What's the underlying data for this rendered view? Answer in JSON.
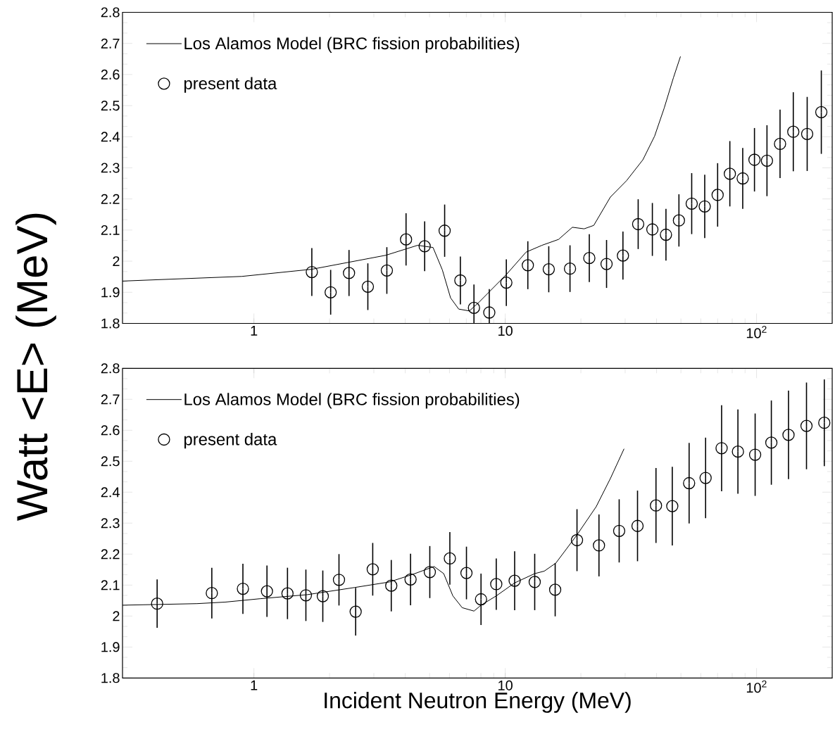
{
  "chart_data": [
    {
      "type": "scatter",
      "ylabel": "Watt <E> (MeV)",
      "log": "x",
      "legend": "top left",
      "xlim": [
        0.3,
        200
      ],
      "ylim": [
        1.8,
        2.8
      ],
      "xticks": [
        1,
        10,
        {
          "value": 100,
          "label": "10$^{2}$"
        }
      ],
      "yticks": [
        1.8,
        1.9,
        2,
        2.1,
        2.2,
        2.3,
        2.4,
        2.5,
        2.6,
        2.7,
        2.8
      ],
      "series": [
        {
          "type": "line",
          "name": "Los Alamos Model (BRC fission probabilities)",
          "color": "#000000",
          "marker": "none",
          "line_style": "solid",
          "x": [
            0.3,
            0.894,
            1.7,
            3.35,
            4.48,
            5.16,
            5.62,
            6.06,
            6.53,
            7.2,
            7.84,
            10.1,
            12.1,
            14.0,
            16.3,
            18.5,
            20.6,
            22.5,
            26.2,
            30.4,
            35.3,
            39.3,
            42.9,
            46.7,
            49.8
          ],
          "values": [
            1.936,
            1.951,
            1.974,
            2.019,
            2.051,
            2.044,
            1.972,
            1.882,
            1.846,
            1.84,
            1.867,
            1.957,
            2.029,
            2.051,
            2.07,
            2.109,
            2.104,
            2.115,
            2.206,
            2.259,
            2.326,
            2.402,
            2.492,
            2.59,
            2.658
          ]
        },
        {
          "name": "present data",
          "color": "#000000",
          "marker": "circle",
          "x": [
            1.7,
            2.02,
            2.39,
            2.84,
            3.38,
            4.03,
            4.78,
            5.74,
            6.63,
            7.51,
            8.64,
            10.1,
            12.3,
            14.9,
            18.1,
            21.6,
            25.3,
            29.4,
            33.8,
            38.5,
            43.6,
            49.1,
            55.2,
            62.2,
            70.0,
            78.3,
            88.1,
            98.1,
            110,
            124,
            140,
            159,
            181
          ],
          "values": [
            1.965,
            1.9,
            1.962,
            1.918,
            1.97,
            2.07,
            2.048,
            2.098,
            1.938,
            1.85,
            1.835,
            1.931,
            1.987,
            1.974,
            1.976,
            2.01,
            1.991,
            2.018,
            2.119,
            2.102,
            2.085,
            2.131,
            2.185,
            2.176,
            2.213,
            2.281,
            2.266,
            2.326,
            2.323,
            2.377,
            2.416,
            2.409,
            2.479
          ],
          "errors": [
            0.077,
            0.072,
            0.074,
            0.075,
            0.075,
            0.084,
            0.08,
            0.084,
            0.077,
            0.075,
            0.075,
            0.075,
            0.077,
            0.074,
            0.075,
            0.077,
            0.077,
            0.077,
            0.08,
            0.085,
            0.083,
            0.084,
            0.098,
            0.102,
            0.102,
            0.105,
            0.098,
            0.102,
            0.114,
            0.11,
            0.127,
            0.119,
            0.134
          ]
        }
      ]
    },
    {
      "type": "scatter",
      "xlabel": "Incident Neutron Energy (MeV)",
      "log": "x",
      "legend": "top left",
      "xlim": [
        0.3,
        200
      ],
      "ylim": [
        1.8,
        2.8
      ],
      "xticks": [
        1,
        10,
        {
          "value": 100,
          "label": "10$^{2}$"
        }
      ],
      "yticks": [
        1.8,
        1.9,
        2,
        2.1,
        2.2,
        2.3,
        2.4,
        2.5,
        2.6,
        2.7,
        2.8
      ],
      "series": [
        {
          "type": "line",
          "name": "Los Alamos Model (BRC fission probabilities)",
          "color": "#000000",
          "marker": "none",
          "line_style": "solid",
          "x": [
            0.3,
            0.594,
            0.769,
            1.06,
            1.63,
            2.51,
            3.46,
            4.3,
            5.21,
            5.69,
            6.19,
            6.74,
            7.51,
            8.01,
            9.21,
            10.9,
            13.1,
            14.3,
            15.9,
            19.3,
            23.0,
            26.2,
            29.7
          ],
          "values": [
            2.035,
            2.04,
            2.045,
            2.056,
            2.069,
            2.092,
            2.11,
            2.135,
            2.16,
            2.137,
            2.065,
            2.027,
            2.016,
            2.035,
            2.065,
            2.107,
            2.137,
            2.145,
            2.171,
            2.262,
            2.353,
            2.444,
            2.54
          ]
        },
        {
          "name": "present data",
          "color": "#000000",
          "marker": "circle",
          "x": [
            0.412,
            0.68,
            0.904,
            1.127,
            1.36,
            1.61,
            1.88,
            2.18,
            2.54,
            2.97,
            3.52,
            4.2,
            5.01,
            6.02,
            7.01,
            8.01,
            9.21,
            10.9,
            13.1,
            15.8,
            19.3,
            23.6,
            28.4,
            33.6,
            39.8,
            46.2,
            53.9,
            62.7,
            72.6,
            84.3,
            98.7,
            114.5,
            134,
            158,
            186
          ],
          "values": [
            2.04,
            2.074,
            2.088,
            2.08,
            2.073,
            2.067,
            2.064,
            2.117,
            2.014,
            2.151,
            2.098,
            2.118,
            2.142,
            2.186,
            2.139,
            2.054,
            2.103,
            2.114,
            2.11,
            2.085,
            2.245,
            2.228,
            2.275,
            2.291,
            2.357,
            2.355,
            2.429,
            2.446,
            2.542,
            2.531,
            2.521,
            2.56,
            2.585,
            2.614,
            2.624
          ],
          "errors": [
            0.078,
            0.082,
            0.081,
            0.083,
            0.083,
            0.083,
            0.083,
            0.083,
            0.077,
            0.085,
            0.083,
            0.083,
            0.084,
            0.085,
            0.085,
            0.083,
            0.083,
            0.095,
            0.091,
            0.086,
            0.1,
            0.1,
            0.102,
            0.114,
            0.121,
            0.127,
            0.13,
            0.13,
            0.139,
            0.136,
            0.133,
            0.136,
            0.143,
            0.14,
            0.14
          ]
        }
      ]
    }
  ]
}
